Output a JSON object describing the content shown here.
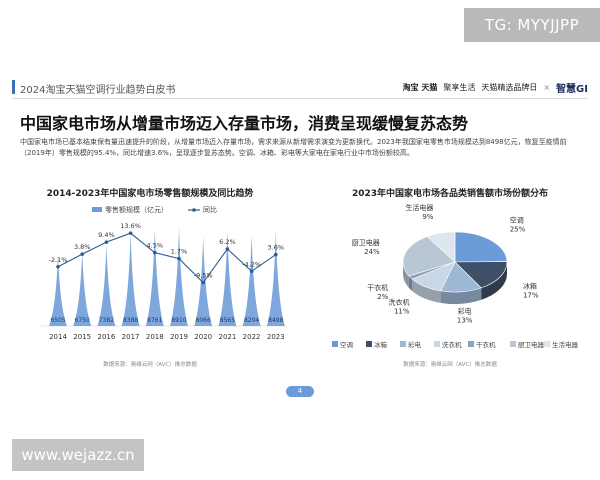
{
  "header": {
    "title": "2024淘宝天猫空调行业趋势白皮书",
    "logos": [
      "淘宝 天猫",
      "聚享生活",
      "天猫精选品牌日",
      "×",
      "智慧GI"
    ]
  },
  "main_title": "中国家电市场从增量市场迈入存量市场，消费呈现缓慢复苏态势",
  "description": "中国家电市场已基本结束保有量迅速提升的阶段，从增量市场迈入存量市场，需求来源从新增需求演变为更新换代。2023年我国家电零售市场规模达到8498亿元，恢复至疫情前（2019年）零售规模的95.4%，同比增速3.6%，呈现逐步复苏态势。空调、冰箱、彩电等大家电在家电行业中市场份额较高。",
  "watermarks": {
    "tg": "TG: MYYJJPP",
    "site": "www.wejazz.cn"
  },
  "page_number": "4",
  "colors": {
    "accent": "#3d6fb6",
    "bar": "#6b9bd8",
    "line": "#2f5b93",
    "pie_ac": "#6b9bd8",
    "pie_fridge": "#3f4f67"
  },
  "chart_data": [
    {
      "type": "bar",
      "title": "2014-2023年中国家电市场零售额规模及同比趋势",
      "categories": [
        "2014",
        "2015",
        "2016",
        "2017",
        "2018",
        "2019",
        "2020",
        "2021",
        "2022",
        "2023"
      ],
      "series": [
        {
          "name": "零售额规模（亿元）",
          "type": "bar",
          "values": [
            6505,
            6750,
            7382,
            8388,
            8761,
            8910,
            8066,
            8565,
            8204,
            8498
          ]
        },
        {
          "name": "同比",
          "type": "line",
          "values": [
            -2.1,
            3.8,
            9.4,
            13.6,
            4.5,
            1.7,
            -9.5,
            6.2,
            -4.2,
            3.6
          ]
        }
      ],
      "line_labels": [
        "-2.1%",
        "3.8%",
        "9.4%",
        "13.6%",
        "4.5%",
        "1.7%",
        "-9.5%",
        "6.2%",
        "-4.2%",
        "3.6%"
      ],
      "source": "数据来源：奥维云网（AVC）推总数据"
    },
    {
      "type": "pie",
      "title": "2023年中国家电市场各品类销售额市场份额分布",
      "labels": [
        "空调",
        "冰箱",
        "彩电",
        "洗衣机",
        "干衣机",
        "厨卫电器",
        "生活电器"
      ],
      "values": [
        25,
        17,
        13,
        11,
        2,
        24,
        9
      ],
      "value_labels": [
        "25%",
        "17%",
        "13%",
        "11%",
        "2%",
        "24%",
        "9%"
      ],
      "colors": [
        "#6b9bd8",
        "#3f4f67",
        "#9eb7d4",
        "#c9d6e6",
        "#8fa3bd",
        "#b9c6d6",
        "#dde5ef"
      ],
      "source": "数据来源：奥维云网（AVC）推总数据"
    }
  ]
}
